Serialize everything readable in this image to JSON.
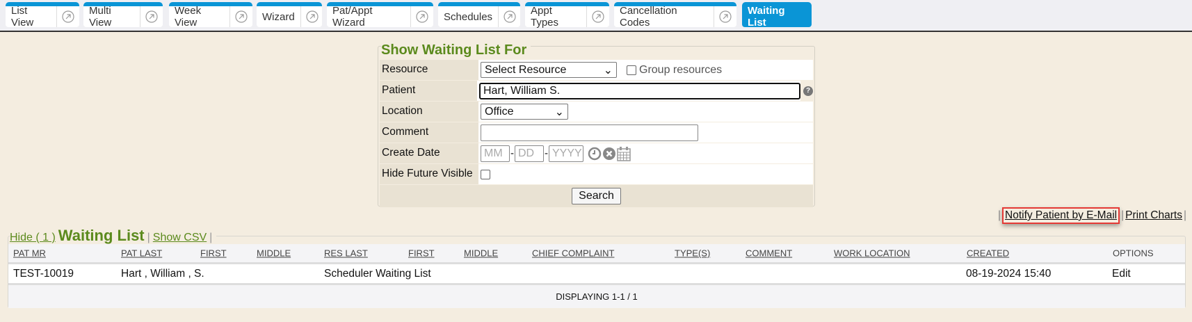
{
  "tabs": [
    {
      "label": "List View",
      "external": true
    },
    {
      "label": "Multi View",
      "external": true
    },
    {
      "label": "Week View",
      "external": true
    },
    {
      "label": "Wizard",
      "external": true
    },
    {
      "label": "Pat/Appt Wizard",
      "external": true
    },
    {
      "label": "Schedules",
      "external": true
    },
    {
      "label": "Appt Types",
      "external": true
    },
    {
      "label": "Cancellation Codes",
      "external": true
    },
    {
      "label": "Waiting List",
      "active": true
    }
  ],
  "accent": "#0a95d6",
  "form": {
    "title": "Show Waiting List For",
    "resource_label": "Resource",
    "resource_value": "Select Resource",
    "group_label": "Group resources",
    "patient_label": "Patient",
    "patient_value": "Hart, William S.",
    "location_label": "Location",
    "location_value": "Office",
    "comment_label": "Comment",
    "comment_value": "",
    "date_label": "Create Date",
    "mm": "MM",
    "dd": "DD",
    "yyyy": "YYYY",
    "hide_label": "Hide Future Visible",
    "search": "Search"
  },
  "actions": {
    "notify": "Notify Patient by E-Mail",
    "print": "Print Charts"
  },
  "list": {
    "hide": "Hide ( 1 )",
    "title": "Waiting List",
    "csv": "Show CSV",
    "columns": [
      "PAT MR",
      "PAT LAST",
      "FIRST",
      "MIDDLE",
      "RES LAST",
      "FIRST",
      "MIDDLE",
      "CHIEF COMPLAINT",
      "TYPE(S)",
      "COMMENT",
      "WORK LOCATION",
      "CREATED",
      "OPTIONS"
    ],
    "row": {
      "mr": "TEST-10019",
      "patient": "Hart , William , S.",
      "res": "Scheduler Waiting List",
      "created": "08-19-2024 15:40",
      "options": "Edit"
    },
    "footer": "DISPLAYING 1-1 / 1"
  }
}
